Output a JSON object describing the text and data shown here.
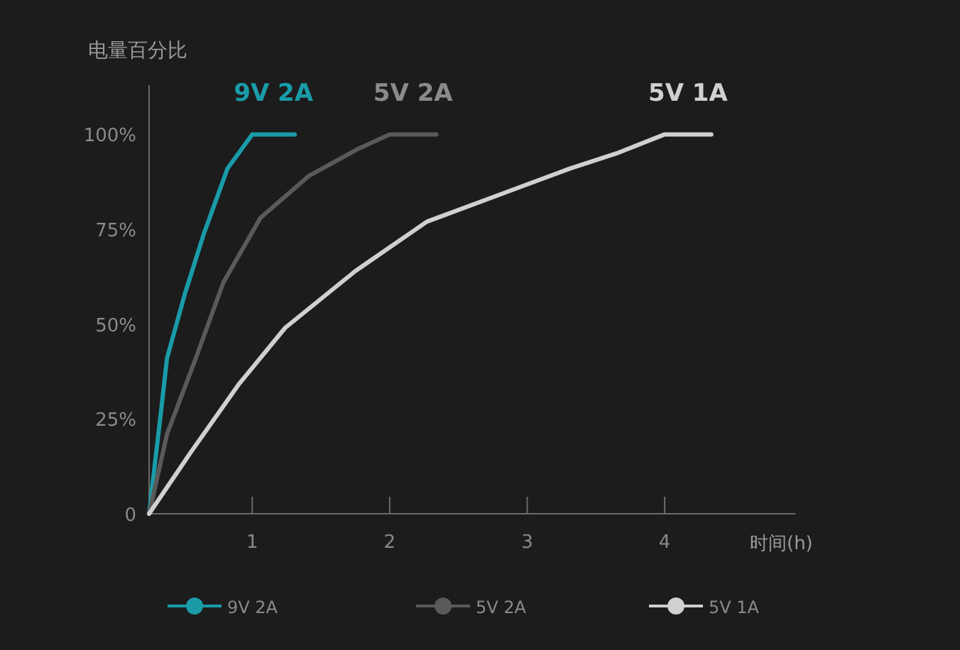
{
  "chart_data": {
    "type": "line",
    "ylabel": "电量百分比",
    "xlabel": "时间(h)",
    "xlim": [
      0.25,
      4.95
    ],
    "xticks": [
      1,
      2,
      3,
      4
    ],
    "ylim": [
      0,
      113
    ],
    "yticks": [
      0,
      {
        "value": 25,
        "label": "25%"
      },
      {
        "value": 50,
        "label": "50%"
      },
      {
        "value": 75,
        "label": "75%"
      },
      {
        "value": 100,
        "label": "100%"
      }
    ],
    "grid": false,
    "legend": "bottom",
    "line_style": "solid",
    "series": [
      {
        "name": "9V 2A",
        "color": "#1a9ba8",
        "x": [
          0.25,
          0.34,
          0.38,
          0.51,
          0.65,
          0.82,
          1.0,
          1.31
        ],
        "values": [
          0,
          28,
          41,
          58,
          74,
          91,
          100,
          100
        ]
      },
      {
        "name": "5V 2A",
        "color": "#5a5a5a",
        "x": [
          0.25,
          0.38,
          0.59,
          0.79,
          1.06,
          1.41,
          1.76,
          2.0,
          2.34
        ],
        "values": [
          0,
          21,
          41,
          61,
          78,
          89,
          96,
          100,
          100
        ]
      },
      {
        "name": "5V 1A",
        "color": "#d0d0d0",
        "x": [
          0.25,
          0.55,
          0.9,
          1.24,
          1.75,
          2.27,
          2.79,
          3.31,
          3.65,
          4.0,
          4.34
        ],
        "values": [
          0,
          16,
          34,
          49,
          64,
          77,
          84,
          91,
          95,
          100,
          100
        ]
      }
    ]
  }
}
